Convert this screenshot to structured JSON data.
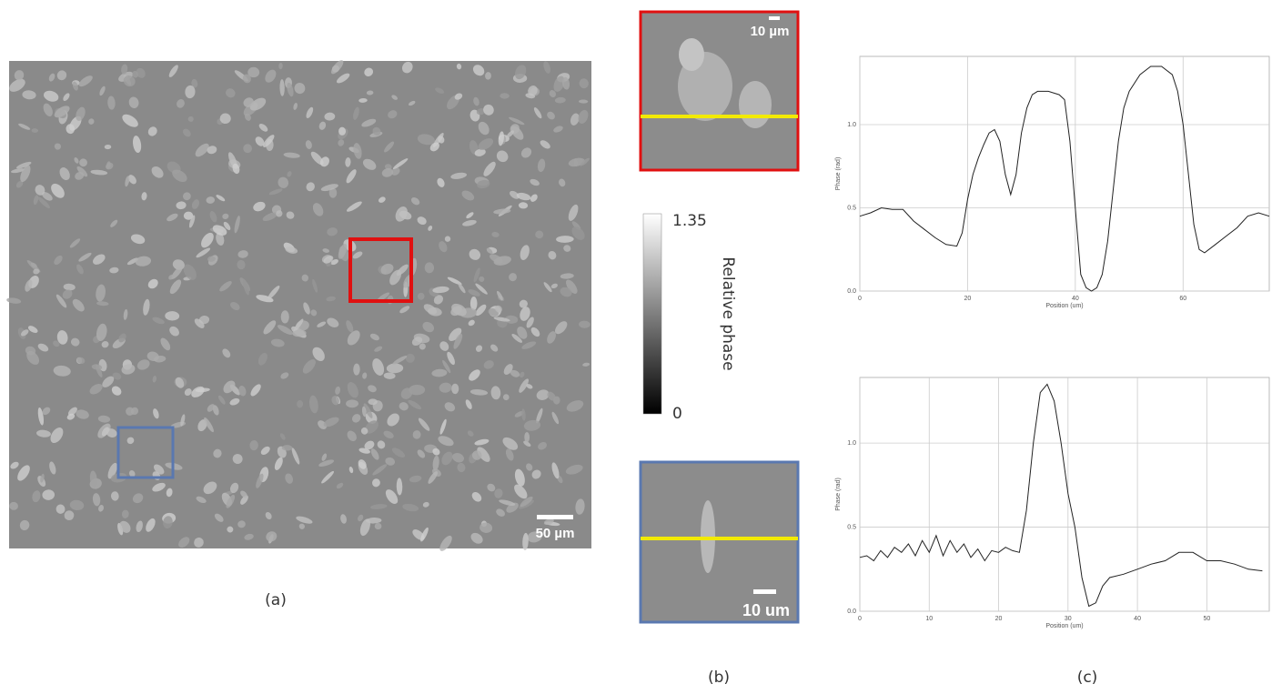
{
  "figure": {
    "panel_labels": [
      "(a)",
      "(b)",
      "(c)"
    ],
    "scale_bar_a": "50 µm",
    "scale_bar_red": "10 µm",
    "scale_bar_blue": "10 um",
    "colorbar": {
      "max_label": "1.35",
      "min_label": "0",
      "title": "Relative phase"
    }
  },
  "chart_data": [
    {
      "type": "line",
      "y_label": "Phase (rad)",
      "x_label": "Position (um)",
      "xlim": [
        0,
        76
      ],
      "ylim": [
        0,
        1.41
      ],
      "xticks": [
        0,
        20,
        40,
        60
      ],
      "yticks": [
        {
          "value": 0,
          "label": "0.0"
        },
        {
          "value": 0.5,
          "label": "0.5"
        },
        {
          "value": 1,
          "label": "1.0"
        }
      ],
      "grid": true,
      "color": "#222222",
      "x": [
        0,
        2,
        4,
        6,
        8,
        10,
        12,
        14,
        16,
        18,
        19,
        20,
        21,
        22,
        23,
        24,
        25,
        26,
        27,
        28,
        29,
        30,
        31,
        32,
        33,
        35,
        37,
        38,
        39,
        40,
        41,
        42,
        43,
        44,
        45,
        46,
        47,
        48,
        49,
        50,
        52,
        54,
        56,
        58,
        59,
        60,
        61,
        62,
        63,
        64,
        66,
        68,
        70,
        72,
        74,
        76
      ],
      "values": [
        0.45,
        0.47,
        0.5,
        0.49,
        0.49,
        0.42,
        0.37,
        0.32,
        0.28,
        0.27,
        0.35,
        0.55,
        0.7,
        0.8,
        0.88,
        0.95,
        0.97,
        0.9,
        0.7,
        0.58,
        0.7,
        0.95,
        1.1,
        1.18,
        1.2,
        1.2,
        1.18,
        1.15,
        0.9,
        0.5,
        0.1,
        0.02,
        0.0,
        0.02,
        0.1,
        0.3,
        0.6,
        0.9,
        1.1,
        1.2,
        1.3,
        1.35,
        1.35,
        1.3,
        1.2,
        1.0,
        0.7,
        0.4,
        0.25,
        0.23,
        0.28,
        0.33,
        0.38,
        0.45,
        0.47,
        0.45
      ]
    },
    {
      "type": "line",
      "y_label": "Phase (rad)",
      "x_label": "Position (um)",
      "xlim": [
        0,
        59
      ],
      "ylim": [
        0,
        1.39
      ],
      "xticks": [
        0,
        10,
        20,
        30,
        40,
        50
      ],
      "yticks": [
        {
          "value": 0,
          "label": "0.0"
        },
        {
          "value": 0.5,
          "label": "0.5"
        },
        {
          "value": 1,
          "label": "1.0"
        }
      ],
      "grid": true,
      "color": "#222222",
      "x": [
        0,
        1,
        2,
        3,
        4,
        5,
        6,
        7,
        8,
        9,
        10,
        11,
        12,
        13,
        14,
        15,
        16,
        17,
        18,
        19,
        20,
        21,
        22,
        23,
        24,
        25,
        26,
        27,
        28,
        29,
        30,
        31,
        32,
        33,
        34,
        35,
        36,
        38,
        40,
        42,
        44,
        46,
        48,
        50,
        52,
        54,
        56,
        58
      ],
      "values": [
        0.32,
        0.33,
        0.3,
        0.36,
        0.32,
        0.38,
        0.35,
        0.4,
        0.33,
        0.42,
        0.35,
        0.45,
        0.33,
        0.42,
        0.35,
        0.4,
        0.32,
        0.37,
        0.3,
        0.36,
        0.35,
        0.38,
        0.36,
        0.35,
        0.6,
        1.0,
        1.3,
        1.35,
        1.25,
        1.0,
        0.7,
        0.5,
        0.2,
        0.03,
        0.05,
        0.15,
        0.2,
        0.22,
        0.25,
        0.28,
        0.3,
        0.35,
        0.35,
        0.3,
        0.3,
        0.28,
        0.25,
        0.24
      ]
    }
  ]
}
